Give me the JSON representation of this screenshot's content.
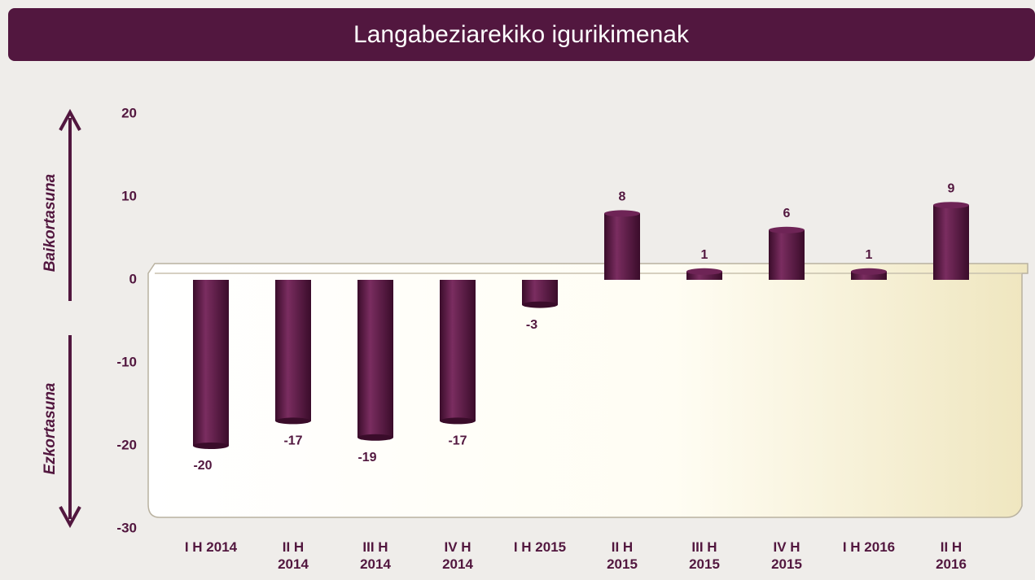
{
  "chart_data": {
    "type": "bar",
    "title": "Langabeziarekiko igurikimenak",
    "categories": [
      "I H 2014",
      "II H\n2014",
      "III H\n2014",
      "IV H\n2014",
      "I H 2015",
      "II H\n2015",
      "III H\n2015",
      "IV H\n2015",
      "I H 2016",
      "II H\n2016"
    ],
    "values": [
      -20,
      -17,
      -19,
      -17,
      -3,
      8,
      1,
      6,
      1,
      9
    ],
    "color": "#5a1a45",
    "ylim": [
      -30,
      20
    ],
    "yticks": [
      -30,
      -20,
      -10,
      0,
      10,
      20
    ],
    "annotations": [
      "Baikortasuna",
      "Ezkortasuna"
    ]
  }
}
